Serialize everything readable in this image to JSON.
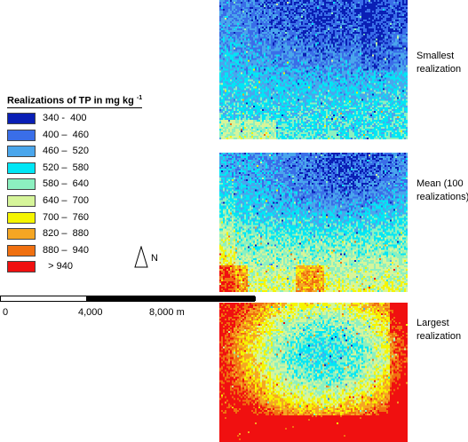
{
  "legend": {
    "title": "Realizations of TP in mg kg",
    "title_superscript": "-1",
    "items": [
      {
        "label": "340 -  400",
        "color": "#0a1fb5"
      },
      {
        "label": "400 –  460",
        "color": "#3a6ee8"
      },
      {
        "label": "460 –  520",
        "color": "#4aa6ec"
      },
      {
        "label": "520 –  580",
        "color": "#00e6f5"
      },
      {
        "label": "580 –  640",
        "color": "#8cf0c0"
      },
      {
        "label": "640 –  700",
        "color": "#d6f59a"
      },
      {
        "label": "700 –  760",
        "color": "#f5f500"
      },
      {
        "label": "820 –  880",
        "color": "#f5a623"
      },
      {
        "label": "880 –  940",
        "color": "#f07010"
      },
      {
        "label": "  > 940",
        "color": "#f01010"
      }
    ]
  },
  "north_arrow": {
    "label": "N",
    "icon": "north-arrow-icon"
  },
  "scale_bar": {
    "labels": [
      "0",
      "4,000",
      "8,000 m"
    ]
  },
  "maps": [
    {
      "caption": "Smallest\nrealization",
      "pattern": "smallest"
    },
    {
      "caption": "Mean (100\nrealizations)",
      "pattern": "mean"
    },
    {
      "caption": "Largest\nrealization",
      "pattern": "largest"
    }
  ]
}
